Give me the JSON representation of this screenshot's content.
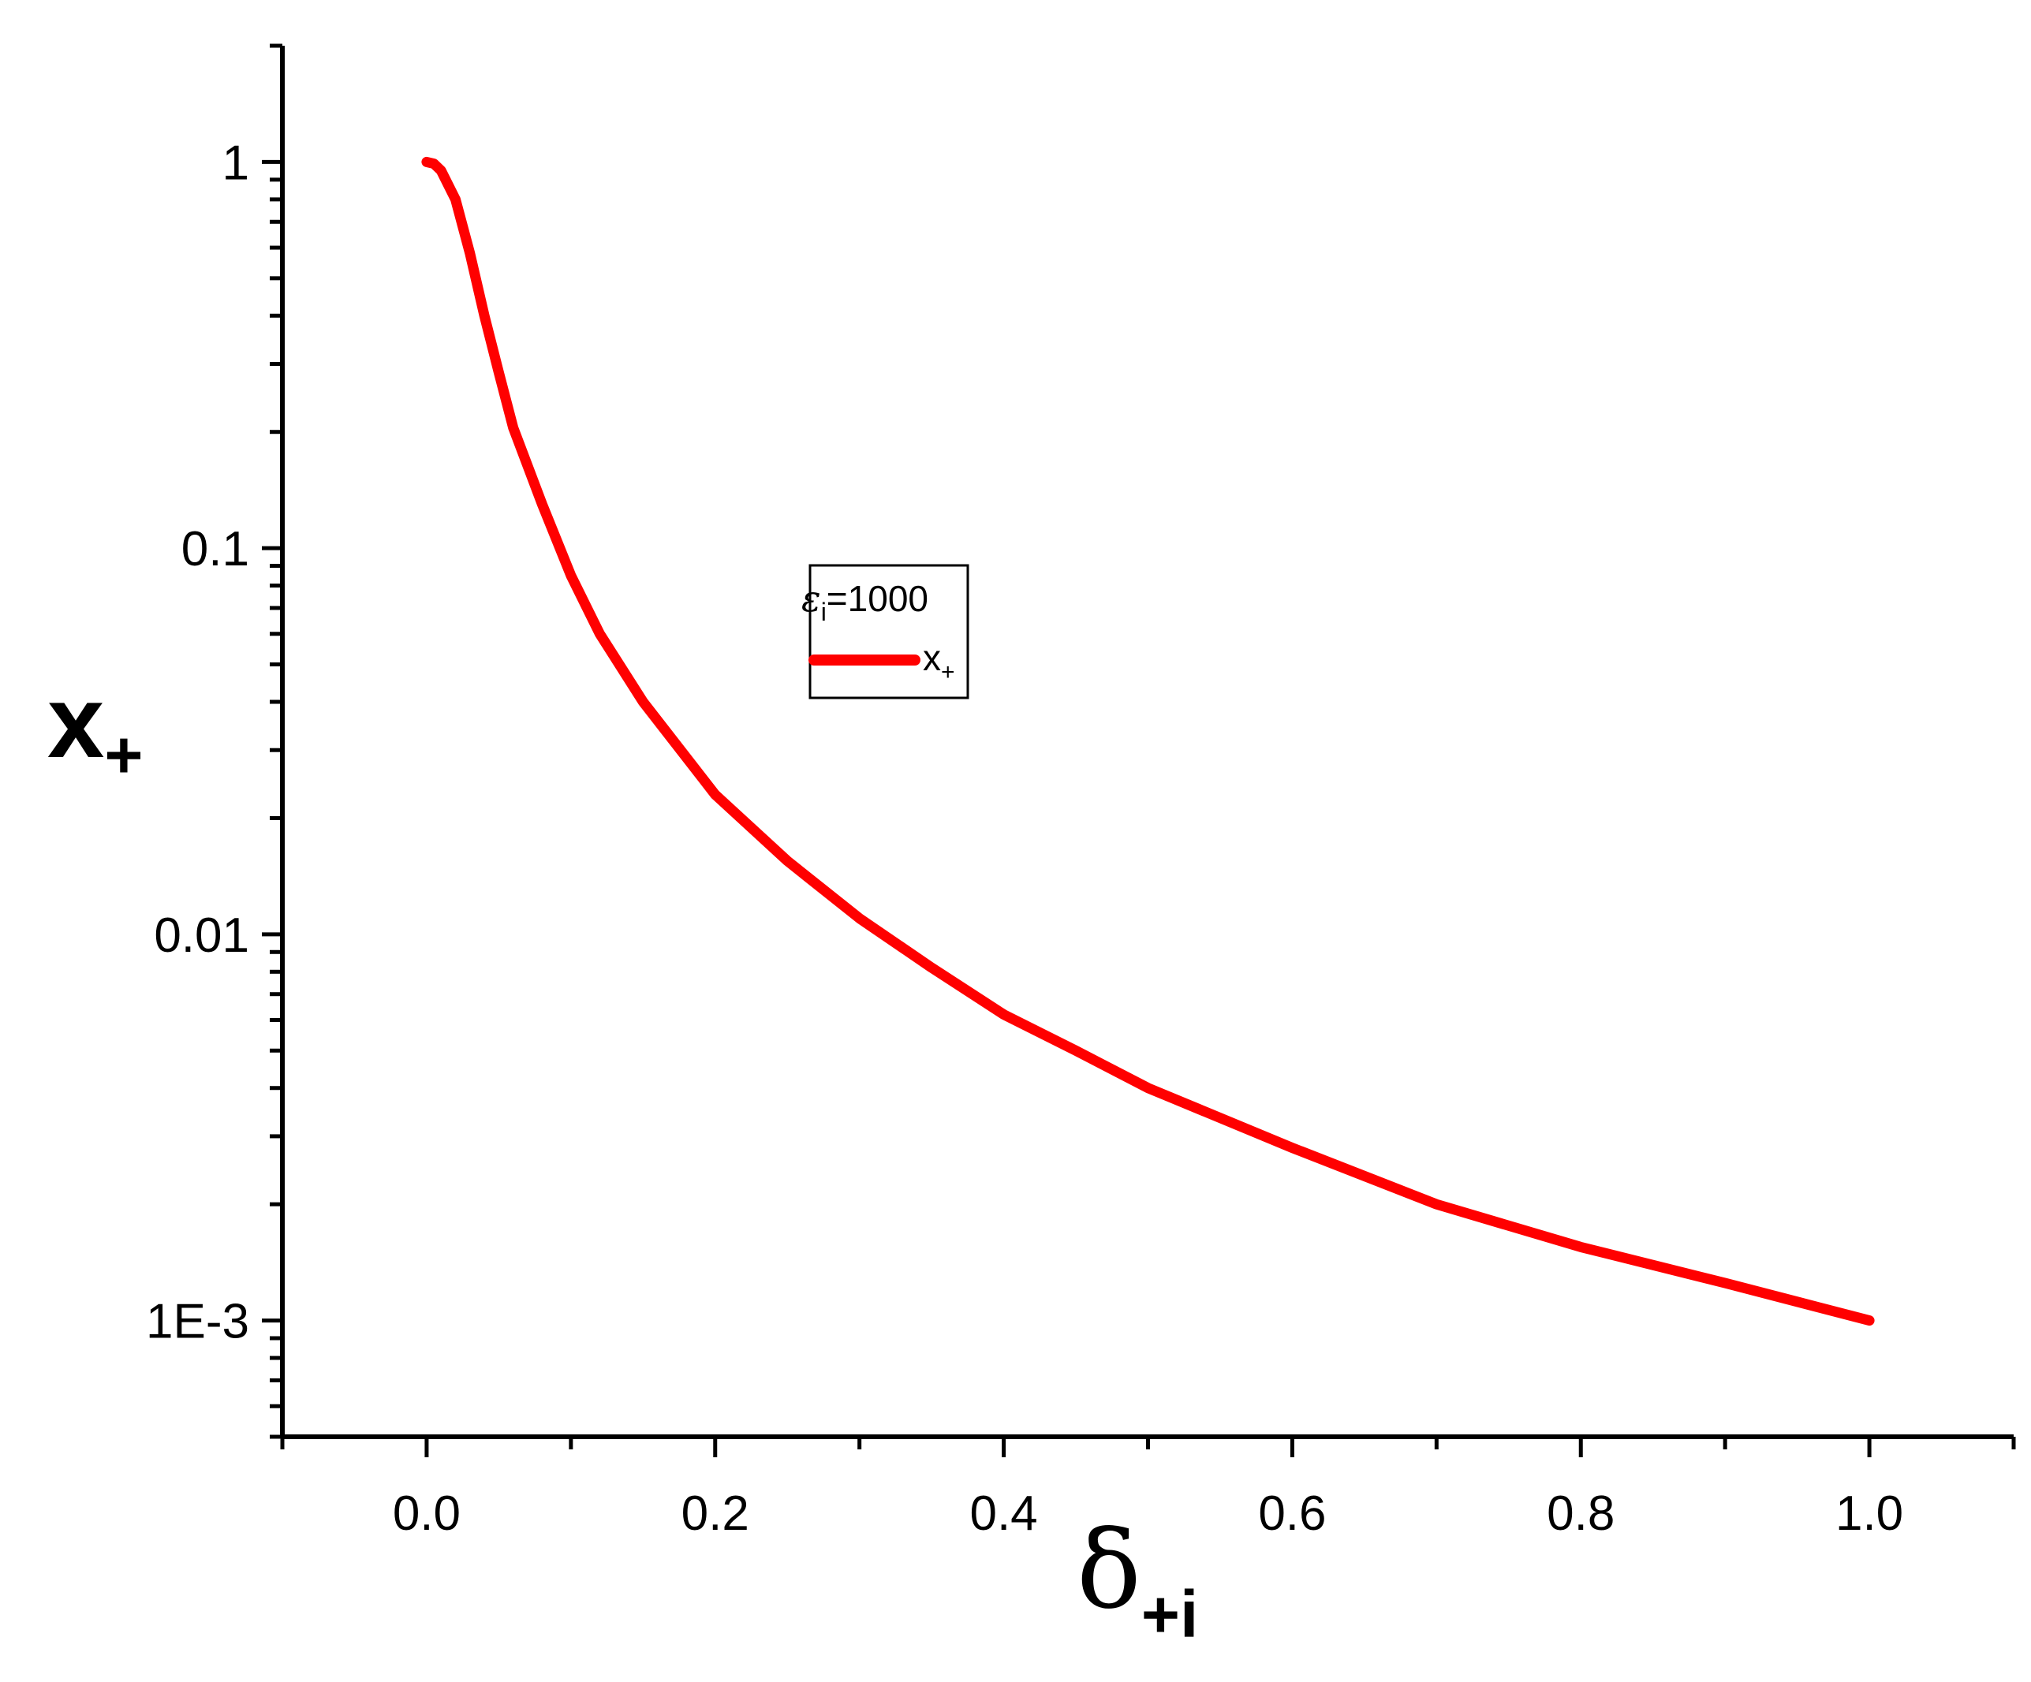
{
  "chart_data": {
    "type": "line",
    "x_axis": {
      "symbol": "δ",
      "subscript": "+i",
      "range": [
        -0.1,
        1.1
      ],
      "tick_labels": [
        "0.0",
        "0.2",
        "0.4",
        "0.6",
        "0.8",
        "1.0"
      ],
      "tick_values": [
        0.0,
        0.2,
        0.4,
        0.6,
        0.8,
        1.0
      ]
    },
    "y_axis": {
      "symbol": "x",
      "subscript": "+",
      "scale": "log",
      "range": [
        0.0005,
        2
      ],
      "tick_labels": [
        "1",
        "0.1",
        "0.01",
        "1E-3"
      ],
      "tick_values": [
        1,
        0.1,
        0.01,
        0.001
      ]
    },
    "legend": {
      "title_symbol": "ε",
      "title_subscript": "i",
      "title_rest": "=1000",
      "placement": "center",
      "entries": [
        {
          "symbol": "x",
          "subscript": "+"
        }
      ]
    },
    "series": [
      {
        "name": "x+",
        "color": "#ff0000",
        "x": [
          0,
          0.005,
          0.01,
          0.02,
          0.03,
          0.04,
          0.05,
          0.06,
          0.08,
          0.1,
          0.12,
          0.15,
          0.2,
          0.25,
          0.3,
          0.35,
          0.4,
          0.45,
          0.5,
          0.6,
          0.7,
          0.8,
          0.9,
          1.0
        ],
        "y": [
          1.0,
          0.99,
          0.95,
          0.8,
          0.58,
          0.4,
          0.285,
          0.205,
          0.13,
          0.085,
          0.06,
          0.04,
          0.023,
          0.0155,
          0.011,
          0.0082,
          0.0062,
          0.005,
          0.004,
          0.0028,
          0.002,
          0.00155,
          0.00125,
          0.001
        ]
      }
    ]
  }
}
